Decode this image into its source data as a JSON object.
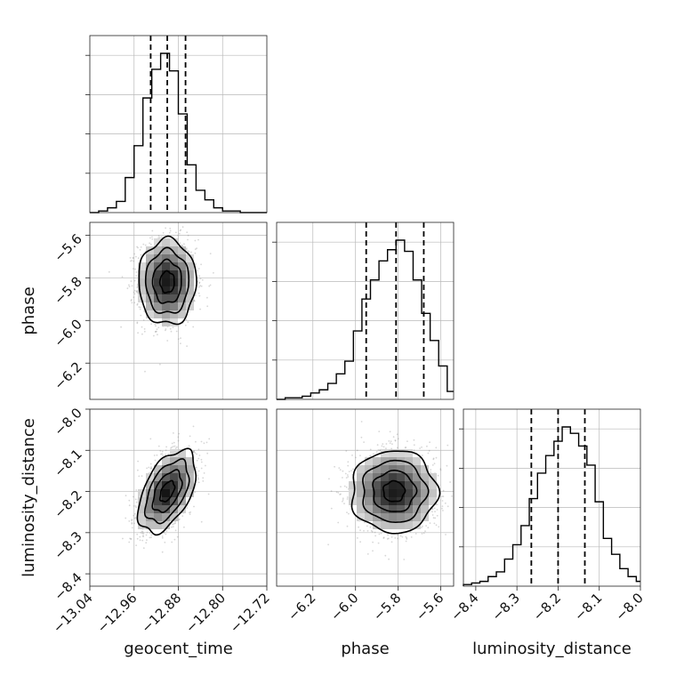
{
  "chart_data": {
    "type": "corner",
    "parameters": [
      {
        "name": "geocent_time",
        "label": "geocent_time",
        "range": [
          -13.04,
          -12.72
        ],
        "ticks": [
          -13.04,
          -12.96,
          -12.88,
          -12.8,
          -12.72
        ],
        "tick_labels": [
          "−13.04",
          "−12.96",
          "−12.88",
          "−12.80",
          "−12.72"
        ],
        "quantiles": [
          -12.93,
          -12.9,
          -12.867
        ],
        "hist_bins": [
          -13.04,
          -13.024,
          -13.008,
          -12.992,
          -12.976,
          -12.96,
          -12.944,
          -12.928,
          -12.912,
          -12.896,
          -12.88,
          -12.864,
          -12.848,
          -12.832,
          -12.816,
          -12.8,
          -12.784,
          -12.768,
          -12.752,
          -12.736,
          -12.72
        ],
        "hist_counts": [
          0,
          0.01,
          0.03,
          0.07,
          0.22,
          0.42,
          0.72,
          0.9,
          1.0,
          0.89,
          0.62,
          0.3,
          0.14,
          0.08,
          0.03,
          0.01,
          0.01,
          0,
          0,
          0
        ],
        "mean": -12.9,
        "sd": 0.026
      },
      {
        "name": "phase",
        "label": "phase",
        "range": [
          -6.37,
          -5.54
        ],
        "ticks": [
          -6.2,
          -6.0,
          -5.8,
          -5.6
        ],
        "tick_labels": [
          "−6.2",
          "−6.0",
          "−5.8",
          "−5.6"
        ],
        "quantiles": [
          -5.95,
          -5.81,
          -5.68
        ],
        "hist_bins": [
          -6.37,
          -6.33,
          -6.29,
          -6.25,
          -6.21,
          -6.17,
          -6.13,
          -6.09,
          -6.05,
          -6.01,
          -5.97,
          -5.93,
          -5.89,
          -5.85,
          -5.81,
          -5.77,
          -5.73,
          -5.69,
          -5.65,
          -5.61,
          -5.57,
          -5.54
        ],
        "hist_counts": [
          0,
          0.01,
          0.01,
          0.02,
          0.04,
          0.06,
          0.1,
          0.16,
          0.24,
          0.43,
          0.63,
          0.75,
          0.87,
          0.94,
          1.0,
          0.93,
          0.75,
          0.54,
          0.37,
          0.21,
          0.05
        ],
        "mean": -5.82,
        "sd": 0.1
      },
      {
        "name": "luminosity_distance",
        "label": "luminosity_distance",
        "range": [
          -8.43,
          -8.0
        ],
        "ticks": [
          -8.4,
          -8.3,
          -8.2,
          -8.1,
          -8.0
        ],
        "tick_labels": [
          "−8.4",
          "−8.3",
          "−8.2",
          "−8.1",
          "−8.0"
        ],
        "quantiles": [
          -8.265,
          -8.2,
          -8.135
        ],
        "hist_bins": [
          -8.43,
          -8.41,
          -8.39,
          -8.37,
          -8.35,
          -8.33,
          -8.31,
          -8.29,
          -8.27,
          -8.25,
          -8.23,
          -8.21,
          -8.19,
          -8.17,
          -8.15,
          -8.13,
          -8.11,
          -8.09,
          -8.07,
          -8.05,
          -8.03,
          -8.01,
          -8.0
        ],
        "hist_counts": [
          0.01,
          0.02,
          0.03,
          0.06,
          0.09,
          0.17,
          0.26,
          0.38,
          0.55,
          0.71,
          0.82,
          0.91,
          1.0,
          0.96,
          0.88,
          0.76,
          0.53,
          0.3,
          0.2,
          0.11,
          0.06,
          0.03
        ],
        "mean": -8.2,
        "sd": 0.05
      }
    ],
    "pairs": [
      {
        "x": "geocent_time",
        "y": "phase",
        "correlation": 0.0
      },
      {
        "x": "geocent_time",
        "y": "luminosity_distance",
        "correlation": 0.5
      },
      {
        "x": "phase",
        "y": "luminosity_distance",
        "correlation": 0.0
      }
    ],
    "contour_levels_sigma": [
      0.5,
      1.0,
      1.5,
      2.0
    ],
    "grid": true
  }
}
